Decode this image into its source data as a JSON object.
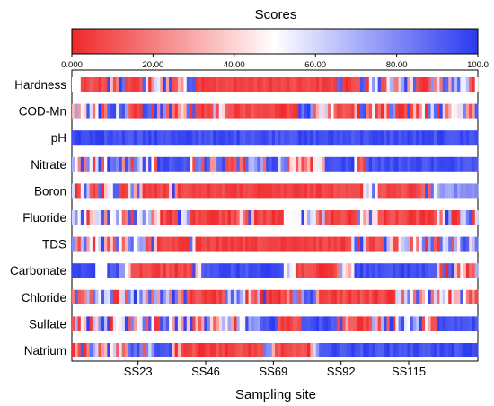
{
  "chart_data": {
    "type": "heatmap",
    "title": "",
    "colorbar": {
      "label": "Scores",
      "min": 0,
      "max": 100,
      "ticks": [
        "0.000",
        "20.00",
        "40.00",
        "60.00",
        "80.00",
        "100.0"
      ],
      "colors": {
        "low": "#f0282a",
        "mid": "#ffffff",
        "high": "#2b3af0"
      },
      "placement": "top"
    },
    "xlabel": "Sampling site",
    "ylabel": "",
    "x_ticks": [
      "SS23",
      "SS46",
      "SS69",
      "SS92",
      "SS115"
    ],
    "n_sites": 138,
    "rows": [
      {
        "name": "Hardness",
        "segments": [
          [
            1,
            3,
            50
          ],
          [
            4,
            12,
            "r"
          ],
          [
            13,
            18,
            "m"
          ],
          [
            19,
            24,
            "r"
          ],
          [
            25,
            40,
            "m"
          ],
          [
            41,
            42,
            "b"
          ],
          [
            43,
            90,
            "lr"
          ],
          [
            91,
            92,
            "m"
          ],
          [
            93,
            98,
            "r"
          ],
          [
            99,
            118,
            "m"
          ],
          [
            119,
            120,
            "r"
          ],
          [
            121,
            138,
            "m"
          ]
        ]
      },
      {
        "name": "COD-Mn",
        "segments": [
          [
            1,
            20,
            "m"
          ],
          [
            21,
            24,
            "lr"
          ],
          [
            25,
            42,
            "m"
          ],
          [
            43,
            48,
            "r"
          ],
          [
            49,
            52,
            "m"
          ],
          [
            53,
            76,
            "r"
          ],
          [
            77,
            90,
            "m"
          ],
          [
            91,
            96,
            "r"
          ],
          [
            97,
            110,
            "m"
          ],
          [
            111,
            113,
            "r"
          ],
          [
            114,
            138,
            "m"
          ]
        ]
      },
      {
        "name": "pH",
        "segments": [
          [
            1,
            138,
            "b"
          ]
        ]
      },
      {
        "name": "Nitrate",
        "segments": [
          [
            1,
            30,
            "m"
          ],
          [
            31,
            40,
            "b"
          ],
          [
            41,
            52,
            "m"
          ],
          [
            53,
            56,
            "r"
          ],
          [
            57,
            86,
            "m"
          ],
          [
            87,
            96,
            "b"
          ],
          [
            97,
            100,
            "m"
          ],
          [
            101,
            138,
            "b"
          ]
        ]
      },
      {
        "name": "Boron",
        "segments": [
          [
            1,
            16,
            "m"
          ],
          [
            17,
            18,
            "r"
          ],
          [
            19,
            24,
            "m"
          ],
          [
            25,
            31,
            "r"
          ],
          [
            32,
            36,
            "m"
          ],
          [
            37,
            77,
            "lr"
          ],
          [
            78,
            99,
            "lr"
          ],
          [
            100,
            104,
            "m"
          ],
          [
            105,
            118,
            "r"
          ],
          [
            119,
            125,
            "m"
          ],
          [
            126,
            138,
            "lb"
          ]
        ]
      },
      {
        "name": "Fluoride",
        "segments": [
          [
            1,
            30,
            "m"
          ],
          [
            31,
            36,
            "r"
          ],
          [
            37,
            40,
            "m"
          ],
          [
            41,
            56,
            "r"
          ],
          [
            57,
            62,
            "m"
          ],
          [
            63,
            72,
            "r"
          ],
          [
            73,
            78,
            "w"
          ],
          [
            79,
            86,
            "m"
          ],
          [
            87,
            96,
            "r"
          ],
          [
            97,
            104,
            "m"
          ],
          [
            105,
            124,
            "r"
          ],
          [
            125,
            138,
            "m"
          ]
        ]
      },
      {
        "name": "TDS",
        "segments": [
          [
            1,
            30,
            "m"
          ],
          [
            31,
            40,
            "lr"
          ],
          [
            41,
            42,
            "m"
          ],
          [
            43,
            95,
            "lr"
          ],
          [
            96,
            100,
            "m"
          ],
          [
            101,
            106,
            "r"
          ],
          [
            107,
            138,
            "m"
          ]
        ]
      },
      {
        "name": "Carbonate",
        "segments": [
          [
            1,
            8,
            "b"
          ],
          [
            9,
            12,
            "w"
          ],
          [
            13,
            16,
            "b"
          ],
          [
            17,
            20,
            "m"
          ],
          [
            21,
            40,
            "r"
          ],
          [
            41,
            44,
            "m"
          ],
          [
            45,
            72,
            "b"
          ],
          [
            73,
            76,
            "m"
          ],
          [
            77,
            90,
            "r"
          ],
          [
            91,
            96,
            "m"
          ],
          [
            97,
            124,
            "b"
          ],
          [
            125,
            138,
            "m"
          ]
        ]
      },
      {
        "name": "Chloride",
        "segments": [
          [
            1,
            40,
            "m"
          ],
          [
            41,
            50,
            "r"
          ],
          [
            51,
            66,
            "m"
          ],
          [
            67,
            72,
            "r"
          ],
          [
            73,
            84,
            "m"
          ],
          [
            85,
            110,
            "r"
          ],
          [
            111,
            138,
            "m"
          ]
        ]
      },
      {
        "name": "Sulfate",
        "segments": [
          [
            1,
            60,
            "m"
          ],
          [
            61,
            64,
            "lb"
          ],
          [
            65,
            70,
            "b"
          ],
          [
            71,
            78,
            "r"
          ],
          [
            79,
            90,
            "b"
          ],
          [
            91,
            96,
            "m"
          ],
          [
            97,
            100,
            "r"
          ],
          [
            101,
            124,
            "m"
          ],
          [
            125,
            138,
            "b"
          ]
        ]
      },
      {
        "name": "Natrium",
        "segments": [
          [
            1,
            28,
            "m"
          ],
          [
            29,
            34,
            "b"
          ],
          [
            35,
            38,
            "m"
          ],
          [
            39,
            64,
            "r"
          ],
          [
            65,
            70,
            "m"
          ],
          [
            71,
            80,
            "r"
          ],
          [
            81,
            84,
            "m"
          ],
          [
            85,
            138,
            "b"
          ]
        ]
      }
    ]
  }
}
